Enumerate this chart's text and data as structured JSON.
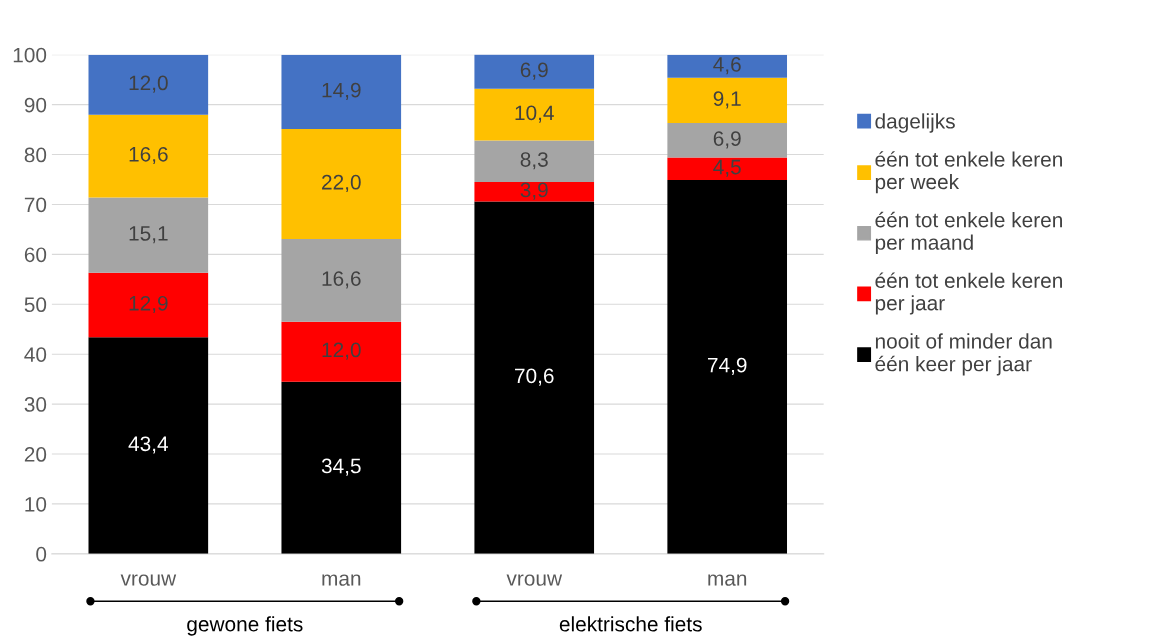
{
  "chart_data": {
    "type": "bar",
    "stacked": true,
    "categories": [
      "vrouw",
      "man",
      "vrouw",
      "man"
    ],
    "series": [
      {
        "name": "nooit of minder dan\néén keer per jaar",
        "color": "#000000",
        "values": [
          43.4,
          34.5,
          70.6,
          74.9
        ],
        "value_labels": [
          "43,4",
          "34,5",
          "70,6",
          "74,9"
        ]
      },
      {
        "name": "één tot enkele keren\nper jaar",
        "color": "#ff0000",
        "values": [
          12.9,
          12.0,
          3.9,
          4.5
        ],
        "value_labels": [
          "12,9",
          "12,0",
          "3,9",
          "4,5"
        ]
      },
      {
        "name": "één tot enkele keren\nper maand",
        "color": "#a5a5a5",
        "values": [
          15.1,
          16.6,
          8.3,
          6.9
        ],
        "value_labels": [
          "15,1",
          "16,6",
          "8,3",
          "6,9"
        ]
      },
      {
        "name": "één tot enkele keren\nper week",
        "color": "#ffc000",
        "values": [
          16.6,
          22.0,
          10.4,
          9.1
        ],
        "value_labels": [
          "16,6",
          "22,0",
          "10,4",
          "9,1"
        ]
      },
      {
        "name": "dagelijks",
        "color": "#4472c4",
        "values": [
          12.0,
          14.9,
          6.9,
          4.6
        ],
        "value_labels": [
          "12,0",
          "14,9",
          "6,9",
          "4,6"
        ]
      }
    ],
    "ylim": [
      0,
      100
    ],
    "yticks": [
      0,
      10,
      20,
      30,
      40,
      50,
      60,
      70,
      80,
      90,
      100
    ],
    "grid": "y",
    "legend": "right",
    "annotations": [
      "gewone fiets",
      "elektrische fiets"
    ]
  }
}
